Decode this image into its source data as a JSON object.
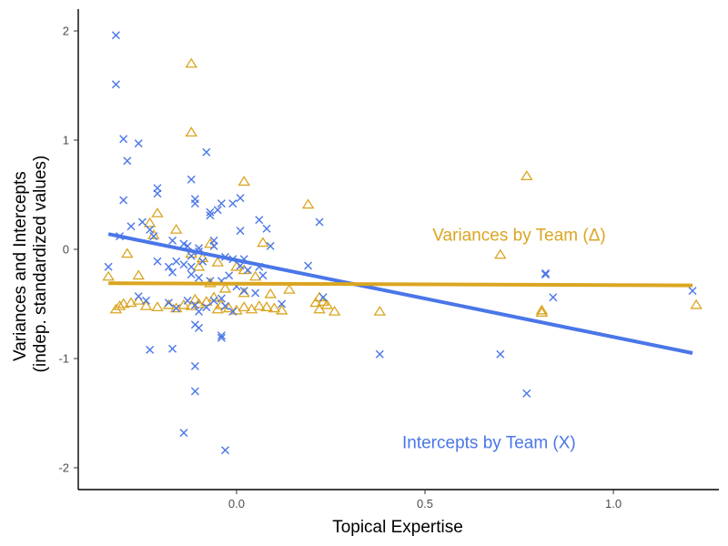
{
  "chart_data": {
    "type": "scatter",
    "title": "",
    "xlabel": "Topical Expertise",
    "ylabel_lines": [
      "Variances and Intercepts",
      "(indep. standardized values)"
    ],
    "xlim": [
      -0.42,
      1.28
    ],
    "ylim": [
      -2.2,
      2.2
    ],
    "x_ticks": [
      0.0,
      0.5,
      1.0
    ],
    "x_tick_labels": [
      "0.0",
      "0.5",
      "1.0"
    ],
    "y_ticks": [
      2,
      1,
      0,
      -1,
      -2
    ],
    "y_tick_labels": [
      "2",
      "1",
      "0",
      "-1",
      "-2"
    ],
    "grid": false,
    "legend": "none",
    "annotations": [
      {
        "text": "Variances by Team (Δ)",
        "x": 0.75,
        "y": 0.08,
        "series": "variances"
      },
      {
        "text": "Intercepts by Team (X)",
        "x": 0.67,
        "y": -1.82,
        "series": "intercepts"
      }
    ],
    "series": [
      {
        "key": "intercepts",
        "marker": "x",
        "color": "#4a76e8",
        "trend": {
          "x": [
            -0.34,
            1.21
          ],
          "y": [
            0.14,
            -0.95
          ]
        },
        "points": [
          [
            -0.32,
            1.96
          ],
          [
            -0.32,
            1.51
          ],
          [
            -0.3,
            1.01
          ],
          [
            -0.29,
            0.81
          ],
          [
            -0.26,
            0.97
          ],
          [
            -0.3,
            0.45
          ],
          [
            -0.21,
            0.56
          ],
          [
            -0.21,
            0.51
          ],
          [
            -0.12,
            0.64
          ],
          [
            -0.08,
            0.89
          ],
          [
            -0.11,
            0.46
          ],
          [
            -0.11,
            0.42
          ],
          [
            -0.07,
            0.34
          ],
          [
            -0.07,
            0.31
          ],
          [
            -0.05,
            0.36
          ],
          [
            -0.04,
            0.42
          ],
          [
            -0.01,
            0.42
          ],
          [
            0.01,
            0.47
          ],
          [
            0.06,
            0.27
          ],
          [
            0.08,
            0.19
          ],
          [
            0.01,
            0.17
          ],
          [
            0.22,
            0.25
          ],
          [
            -0.34,
            -0.16
          ],
          [
            -0.31,
            0.12
          ],
          [
            -0.28,
            0.21
          ],
          [
            -0.25,
            0.25
          ],
          [
            -0.23,
            0.18
          ],
          [
            -0.22,
            0.12
          ],
          [
            -0.17,
            0.08
          ],
          [
            -0.14,
            0.05
          ],
          [
            -0.13,
            0.03
          ],
          [
            -0.1,
            0.01
          ],
          [
            -0.1,
            -0.02
          ],
          [
            -0.12,
            -0.06
          ],
          [
            -0.16,
            -0.11
          ],
          [
            -0.14,
            -0.14
          ],
          [
            -0.12,
            -0.16
          ],
          [
            -0.09,
            -0.11
          ],
          [
            -0.06,
            0.08
          ],
          [
            -0.06,
            0.03
          ],
          [
            -0.03,
            -0.07
          ],
          [
            -0.01,
            -0.09
          ],
          [
            0.01,
            -0.15
          ],
          [
            0.02,
            -0.09
          ],
          [
            0.03,
            -0.19
          ],
          [
            0.06,
            -0.16
          ],
          [
            0.07,
            -0.24
          ],
          [
            0.09,
            0.03
          ],
          [
            0.19,
            -0.15
          ],
          [
            -0.21,
            -0.11
          ],
          [
            -0.18,
            -0.16
          ],
          [
            -0.17,
            -0.21
          ],
          [
            -0.12,
            -0.23
          ],
          [
            -0.1,
            -0.26
          ],
          [
            -0.07,
            -0.29
          ],
          [
            -0.04,
            -0.29
          ],
          [
            -0.02,
            -0.24
          ],
          [
            0.0,
            -0.34
          ],
          [
            0.02,
            -0.38
          ],
          [
            0.05,
            -0.4
          ],
          [
            -0.26,
            -0.43
          ],
          [
            -0.24,
            -0.47
          ],
          [
            -0.18,
            -0.49
          ],
          [
            -0.16,
            -0.54
          ],
          [
            -0.13,
            -0.47
          ],
          [
            -0.11,
            -0.51
          ],
          [
            -0.1,
            -0.57
          ],
          [
            -0.08,
            -0.53
          ],
          [
            -0.06,
            -0.47
          ],
          [
            -0.04,
            -0.45
          ],
          [
            -0.03,
            -0.52
          ],
          [
            -0.01,
            -0.57
          ],
          [
            0.12,
            -0.5
          ],
          [
            0.23,
            -0.44
          ],
          [
            -0.23,
            -0.92
          ],
          [
            -0.17,
            -0.91
          ],
          [
            -0.11,
            -0.69
          ],
          [
            -0.1,
            -0.72
          ],
          [
            -0.04,
            -0.79
          ],
          [
            -0.04,
            -0.81
          ],
          [
            -0.11,
            -1.07
          ],
          [
            -0.11,
            -1.3
          ],
          [
            -0.14,
            -1.68
          ],
          [
            -0.03,
            -1.84
          ],
          [
            0.38,
            -0.96
          ],
          [
            0.7,
            -0.96
          ],
          [
            0.77,
            -1.32
          ],
          [
            0.82,
            -0.22
          ],
          [
            0.82,
            -0.23
          ],
          [
            0.84,
            -0.44
          ],
          [
            1.21,
            -0.38
          ]
        ]
      },
      {
        "key": "variances",
        "marker": "triangle",
        "color": "#daa520",
        "trend": {
          "x": [
            -0.34,
            1.21
          ],
          "y": [
            -0.31,
            -0.33
          ]
        },
        "points": [
          [
            -0.12,
            1.7
          ],
          [
            -0.12,
            1.07
          ],
          [
            0.77,
            0.67
          ],
          [
            0.02,
            0.62
          ],
          [
            0.19,
            0.41
          ],
          [
            -0.21,
            0.33
          ],
          [
            -0.23,
            0.24
          ],
          [
            -0.16,
            0.18
          ],
          [
            -0.22,
            0.13
          ],
          [
            -0.07,
            0.05
          ],
          [
            0.07,
            0.06
          ],
          [
            -0.29,
            -0.04
          ],
          [
            -0.12,
            -0.04
          ],
          [
            -0.09,
            -0.08
          ],
          [
            -0.05,
            -0.12
          ],
          [
            -0.1,
            -0.16
          ],
          [
            0.0,
            -0.16
          ],
          [
            -0.26,
            -0.24
          ],
          [
            0.02,
            -0.19
          ],
          [
            0.05,
            -0.25
          ],
          [
            -0.34,
            -0.25
          ],
          [
            0.7,
            -0.05
          ],
          [
            -0.07,
            -0.31
          ],
          [
            -0.03,
            -0.36
          ],
          [
            0.02,
            -0.4
          ],
          [
            0.09,
            -0.41
          ],
          [
            0.22,
            -0.44
          ],
          [
            0.23,
            -0.48
          ],
          [
            0.14,
            -0.37
          ],
          [
            -0.32,
            -0.55
          ],
          [
            -0.31,
            -0.52
          ],
          [
            -0.3,
            -0.5
          ],
          [
            -0.28,
            -0.49
          ],
          [
            -0.26,
            -0.47
          ],
          [
            -0.24,
            -0.52
          ],
          [
            -0.21,
            -0.53
          ],
          [
            -0.18,
            -0.51
          ],
          [
            -0.16,
            -0.54
          ],
          [
            -0.14,
            -0.51
          ],
          [
            -0.12,
            -0.52
          ],
          [
            -0.11,
            -0.46
          ],
          [
            -0.1,
            -0.5
          ],
          [
            -0.08,
            -0.48
          ],
          [
            -0.06,
            -0.44
          ],
          [
            -0.05,
            -0.55
          ],
          [
            -0.04,
            -0.51
          ],
          [
            -0.02,
            -0.54
          ],
          [
            0.0,
            -0.56
          ],
          [
            0.02,
            -0.53
          ],
          [
            0.04,
            -0.55
          ],
          [
            0.06,
            -0.52
          ],
          [
            0.08,
            -0.53
          ],
          [
            0.1,
            -0.54
          ],
          [
            0.12,
            -0.56
          ],
          [
            0.21,
            -0.49
          ],
          [
            0.22,
            -0.55
          ],
          [
            0.24,
            -0.51
          ],
          [
            0.26,
            -0.57
          ],
          [
            0.38,
            -0.57
          ],
          [
            0.81,
            -0.56
          ],
          [
            0.81,
            -0.58
          ],
          [
            1.22,
            -0.51
          ]
        ]
      }
    ]
  }
}
